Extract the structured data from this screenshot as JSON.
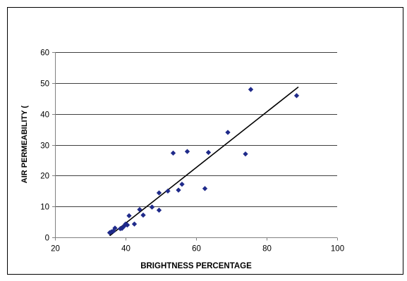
{
  "chart_data": {
    "type": "scatter",
    "title": "",
    "xlabel": "BRIGHTNESS PERCENTAGE",
    "ylabel": "AIR PERMEABILITY (",
    "xlim": [
      20,
      100
    ],
    "ylim": [
      0,
      60
    ],
    "x_ticks": [
      "20",
      "40",
      "60",
      "80",
      "100"
    ],
    "y_ticks": [
      "0",
      "10",
      "20",
      "30",
      "40",
      "50",
      "60"
    ],
    "x_tick_values": [
      20,
      40,
      60,
      80,
      100
    ],
    "y_tick_values": [
      0,
      10,
      20,
      30,
      40,
      50,
      60
    ],
    "grid": "horizontal",
    "legend": "none",
    "marker_color": "#1f2a8a",
    "trendline_color": "#000000",
    "series": [
      {
        "points": [
          [
            35.5,
            1.5
          ],
          [
            36.0,
            1.8
          ],
          [
            36.5,
            2.0
          ],
          [
            37.0,
            3.0
          ],
          [
            38.5,
            2.8
          ],
          [
            39.0,
            2.9
          ],
          [
            39.5,
            3.5
          ],
          [
            40.0,
            4.3
          ],
          [
            40.5,
            4.0
          ],
          [
            41.0,
            7.0
          ],
          [
            42.5,
            4.3
          ],
          [
            44.0,
            9.0
          ],
          [
            45.0,
            7.2
          ],
          [
            47.5,
            9.8
          ],
          [
            49.5,
            8.8
          ],
          [
            49.5,
            14.4
          ],
          [
            52.0,
            15.0
          ],
          [
            53.5,
            27.3
          ],
          [
            55.0,
            15.3
          ],
          [
            56.0,
            17.2
          ],
          [
            57.5,
            27.8
          ],
          [
            62.5,
            15.8
          ],
          [
            63.5,
            27.5
          ],
          [
            69.0,
            34.0
          ],
          [
            74.0,
            27.0
          ],
          [
            75.5,
            47.9
          ],
          [
            88.5,
            45.9
          ]
        ]
      }
    ],
    "trendline": {
      "type": "linear",
      "points": [
        [
          35.5,
          0.5
        ],
        [
          89.0,
          48.7
        ]
      ]
    }
  }
}
